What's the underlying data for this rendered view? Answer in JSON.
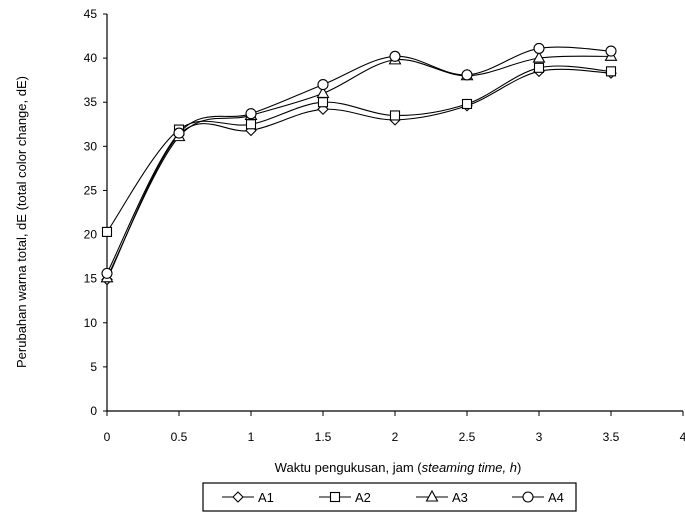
{
  "chart_data": {
    "type": "line",
    "title": "",
    "xlabel": {
      "main": "Waktu pengukusan, jam (",
      "italic": "steaming time, h",
      "end": ")"
    },
    "ylabel": "Perubahan warna total, dE (total color change, dE)",
    "xlim": [
      0,
      4
    ],
    "ylim": [
      0,
      45
    ],
    "x_ticks": [
      "0",
      "0.5",
      "1",
      "1.5",
      "2",
      "2.5",
      "3",
      "3.5",
      "4"
    ],
    "y_ticks": [
      "0",
      "5",
      "10",
      "15",
      "20",
      "25",
      "30",
      "35",
      "40",
      "45"
    ],
    "x": [
      0,
      0.5,
      1,
      1.5,
      2,
      2.5,
      3,
      3.5
    ],
    "grid": false,
    "legend_position": "bottom",
    "series": [
      {
        "name": "A1",
        "marker": "diamond",
        "values": [
          14.9,
          31.3,
          31.8,
          34.2,
          33.0,
          34.6,
          38.5,
          38.3
        ]
      },
      {
        "name": "A2",
        "marker": "square",
        "values": [
          20.3,
          31.9,
          32.5,
          35.0,
          33.5,
          34.8,
          38.9,
          38.5
        ]
      },
      {
        "name": "A3",
        "marker": "triangle",
        "values": [
          15.1,
          31.1,
          33.5,
          36.0,
          39.8,
          38.0,
          40.0,
          40.2
        ]
      },
      {
        "name": "A4",
        "marker": "circle",
        "values": [
          15.6,
          31.5,
          33.7,
          37.0,
          40.2,
          38.1,
          41.1,
          40.8
        ]
      }
    ]
  }
}
